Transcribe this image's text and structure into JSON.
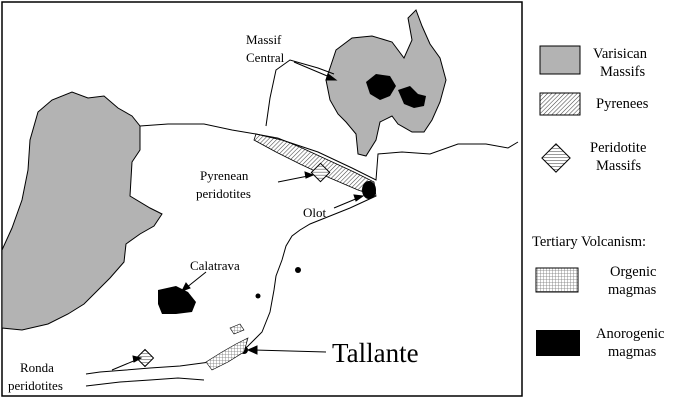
{
  "map": {
    "labels": {
      "massif_central": [
        "Massif",
        "Central"
      ],
      "pyrenean_peridotites": [
        "Pyrenean",
        "peridotites"
      ],
      "olot": "Olot",
      "calatrava": "Calatrava",
      "ronda_peridotites": [
        "Ronda",
        "peridotites"
      ],
      "tallante": "Tallante"
    }
  },
  "legend": {
    "varisican": [
      "Varisican",
      "Massifs"
    ],
    "pyrenees": "Pyrenees",
    "peridotite": [
      "Peridotite",
      "Massifs"
    ],
    "tertiary_title": "Tertiary Volcanism:",
    "orogenic": [
      "Orgenic",
      "magmas"
    ],
    "anorogenic": [
      "Anorogenic",
      "magmas"
    ]
  },
  "colors": {
    "massif_gray": "#b3b3b3",
    "outline": "#000000",
    "volcanic": "#000000",
    "background": "#ffffff"
  },
  "icons": {
    "peridotite": "diamond-hatched-icon",
    "pyrenees": "diagonal-hatch-icon",
    "orogenic": "grid-hatch-icon",
    "anorogenic": "black-square-icon"
  }
}
